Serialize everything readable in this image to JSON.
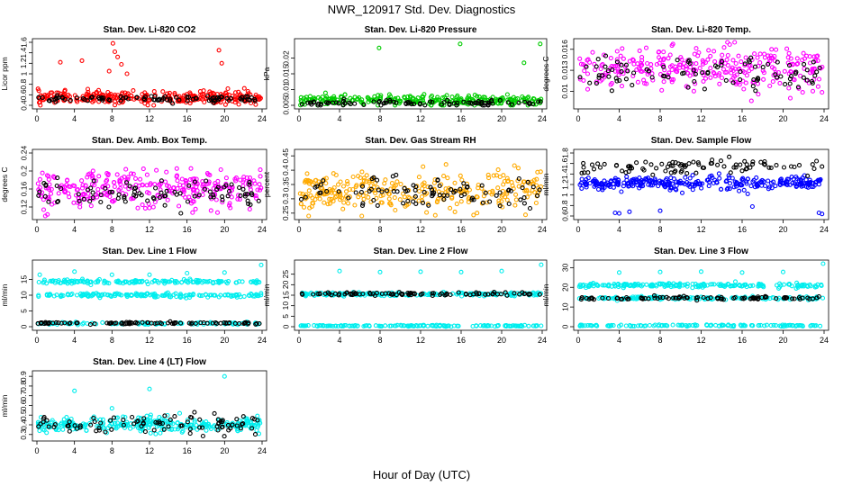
{
  "figure": {
    "title": "NWR_120917  Std. Dev. Diagnostics",
    "xlabel": "Hour of Day (UTC)"
  },
  "chart_data": [
    {
      "type": "scatter",
      "title": "Stan. Dev. Li-820 CO2",
      "ylabel": "Licor ppm",
      "xlim": [
        0,
        24
      ],
      "ylim": [
        0.4,
        1.6
      ],
      "xticks": [
        0,
        4,
        8,
        12,
        16,
        20,
        24
      ],
      "yticks": [
        0.4,
        0.6,
        0.8,
        1.0,
        1.2,
        1.4,
        1.6
      ],
      "series": [
        {
          "name": "main",
          "color": "#ff0000",
          "base": 0.55,
          "spread": 0.06,
          "n": 300
        },
        {
          "name": "ref",
          "color": "#000000",
          "base": 0.52,
          "spread": 0.03,
          "n": 90
        }
      ],
      "outliers": {
        "color": "#ff0000",
        "x": [
          2.5,
          4.8,
          7.7,
          8.1,
          8.3,
          8.6,
          9.0,
          9.6,
          19.4,
          19.7
        ],
        "y": [
          1.22,
          1.25,
          1.05,
          1.58,
          1.42,
          1.32,
          1.18,
          1.0,
          1.45,
          1.2
        ]
      }
    },
    {
      "type": "scatter",
      "title": "Stan. Dev. Li-820 Pressure",
      "ylabel": "kPa",
      "xlim": [
        0,
        24
      ],
      "ylim": [
        0.005,
        0.025
      ],
      "xticks": [
        0,
        4,
        8,
        12,
        16,
        20,
        24
      ],
      "yticks": [
        0.005,
        0.01,
        0.015,
        0.02
      ],
      "series": [
        {
          "name": "main",
          "color": "#00cc00",
          "base": 0.0065,
          "spread": 0.0008,
          "n": 300
        },
        {
          "name": "ref",
          "color": "#000000",
          "base": 0.0057,
          "spread": 0.0004,
          "n": 90
        }
      ],
      "outliers": {
        "color": "#00cc00",
        "x": [
          7.9,
          15.9,
          22.2,
          23.8
        ],
        "y": [
          0.0232,
          0.0245,
          0.0185,
          0.0245
        ]
      }
    },
    {
      "type": "scatter",
      "title": "Stan. Dev. Li-820 Temp.",
      "ylabel": "degrees C",
      "xlim": [
        0,
        24
      ],
      "ylim": [
        0.008,
        0.017
      ],
      "xticks": [
        0,
        4,
        8,
        12,
        16,
        20,
        24
      ],
      "yticks": [
        0.01,
        0.013,
        0.016
      ],
      "series": [
        {
          "name": "main",
          "color": "#ff00ff",
          "base": 0.0132,
          "spread": 0.0016,
          "n": 300
        },
        {
          "name": "ref",
          "color": "#000000",
          "base": 0.0125,
          "spread": 0.0012,
          "n": 90
        }
      ],
      "outliers": {
        "color": "#ff00ff",
        "x": [],
        "y": []
      }
    },
    {
      "type": "scatter",
      "title": "Stan. Dev. Amb. Box Temp.",
      "ylabel": "degrees C",
      "xlim": [
        0,
        24
      ],
      "ylim": [
        0.1,
        0.24
      ],
      "xticks": [
        0,
        4,
        8,
        12,
        16,
        20,
        24
      ],
      "yticks": [
        0.12,
        0.16,
        0.2,
        0.24
      ],
      "series": [
        {
          "name": "main",
          "color": "#ff00ff",
          "base": 0.16,
          "spread": 0.02,
          "n": 300
        },
        {
          "name": "ref",
          "color": "#000000",
          "base": 0.15,
          "spread": 0.015,
          "n": 90
        }
      ],
      "outliers": {
        "color": "#ff00ff",
        "x": [],
        "y": []
      }
    },
    {
      "type": "scatter",
      "title": "Stan. Dev. Gas Stream RH",
      "ylabel": "percent",
      "xlim": [
        0,
        24
      ],
      "ylim": [
        0.24,
        0.46
      ],
      "xticks": [
        0,
        4,
        8,
        12,
        16,
        20,
        24
      ],
      "yticks": [
        0.25,
        0.3,
        0.35,
        0.4,
        0.45
      ],
      "series": [
        {
          "name": "main",
          "color": "#ffaa00",
          "base": 0.325,
          "spread": 0.035,
          "n": 300
        },
        {
          "name": "ref",
          "color": "#000000",
          "base": 0.32,
          "spread": 0.03,
          "n": 90
        }
      ],
      "outliers": {
        "color": "#ffaa00",
        "x": [],
        "y": []
      }
    },
    {
      "type": "scatter",
      "title": "Stan. Dev. Sample Flow",
      "ylabel": "ml/min",
      "xlim": [
        0,
        24
      ],
      "ylim": [
        0.6,
        1.8
      ],
      "xticks": [
        0,
        4,
        8,
        12,
        16,
        20,
        24
      ],
      "yticks": [
        0.6,
        0.8,
        1.0,
        1.2,
        1.4,
        1.6,
        1.8
      ],
      "series": [
        {
          "name": "main",
          "color": "#0000ff",
          "base": 1.22,
          "spread": 0.06,
          "n": 300
        },
        {
          "name": "ref",
          "color": "#000000",
          "base": 1.55,
          "spread": 0.07,
          "n": 90
        }
      ],
      "outliers": {
        "color": "#0000ff",
        "x": [
          3.6,
          4.0,
          5.0,
          8.0,
          17.0,
          23.5,
          23.8
        ],
        "y": [
          0.66,
          0.65,
          0.68,
          0.7,
          0.78,
          0.66,
          0.64
        ]
      }
    },
    {
      "type": "scatter",
      "title": "Stan. Dev. Line 1 Flow",
      "ylabel": "ml/min",
      "xlim": [
        0,
        24
      ],
      "ylim": [
        0,
        20
      ],
      "xticks": [
        0,
        4,
        8,
        12,
        16,
        20,
        24
      ],
      "yticks": [
        0,
        5,
        10,
        15
      ],
      "series": [
        {
          "name": "main",
          "color": "#00eeee",
          "base": 14.3,
          "spread": 0.3,
          "n": 160
        },
        {
          "name": "main2",
          "color": "#00eeee",
          "base": 10.0,
          "spread": 0.3,
          "n": 160
        },
        {
          "name": "low",
          "color": "#00eeee",
          "base": 1.0,
          "spread": 0.2,
          "n": 100
        },
        {
          "name": "ref",
          "color": "#000000",
          "base": 1.1,
          "spread": 0.15,
          "n": 90
        }
      ],
      "outliers": {
        "color": "#00eeee",
        "x": [
          0.3,
          4.0,
          8.0,
          12.0,
          16.0,
          20.0,
          23.9
        ],
        "y": [
          16.5,
          17.5,
          16.5,
          16.5,
          17.0,
          17.2,
          19.6
        ]
      }
    },
    {
      "type": "scatter",
      "title": "Stan. Dev. Line 2 Flow",
      "ylabel": "ml/min",
      "xlim": [
        0,
        24
      ],
      "ylim": [
        0,
        30
      ],
      "xticks": [
        0,
        4,
        8,
        12,
        16,
        20,
        24
      ],
      "yticks": [
        0,
        5,
        10,
        15,
        20,
        25
      ],
      "series": [
        {
          "name": "main",
          "color": "#00eeee",
          "base": 15.5,
          "spread": 0.4,
          "n": 200
        },
        {
          "name": "low",
          "color": "#00eeee",
          "base": 0.4,
          "spread": 0.15,
          "n": 150
        },
        {
          "name": "ref",
          "color": "#000000",
          "base": 15.6,
          "spread": 0.4,
          "n": 90
        }
      ],
      "outliers": {
        "color": "#00eeee",
        "x": [
          4.0,
          8.0,
          12.0,
          16.0,
          20.0,
          23.9
        ],
        "y": [
          26.5,
          26.0,
          26.2,
          26.0,
          26.5,
          29.5
        ]
      }
    },
    {
      "type": "scatter",
      "title": "Stan. Dev. Line 3 Flow",
      "ylabel": "ml/min",
      "xlim": [
        0,
        24
      ],
      "ylim": [
        0,
        32
      ],
      "xticks": [
        0,
        4,
        8,
        12,
        16,
        20,
        24
      ],
      "yticks": [
        0,
        10,
        20,
        30
      ],
      "series": [
        {
          "name": "main",
          "color": "#00eeee",
          "base": 21.0,
          "spread": 0.5,
          "n": 200
        },
        {
          "name": "mid",
          "color": "#00eeee",
          "base": 14.5,
          "spread": 0.4,
          "n": 150
        },
        {
          "name": "low",
          "color": "#00eeee",
          "base": 0.6,
          "spread": 0.2,
          "n": 120
        },
        {
          "name": "ref",
          "color": "#000000",
          "base": 14.5,
          "spread": 0.4,
          "n": 90
        }
      ],
      "outliers": {
        "color": "#00eeee",
        "x": [
          4.0,
          8.0,
          12.0,
          16.0,
          20.0,
          23.9
        ],
        "y": [
          27.5,
          27.8,
          28.0,
          27.5,
          27.8,
          32.0
        ]
      }
    },
    {
      "type": "scatter",
      "title": "Stan. Dev. Line 4 (LT) Flow",
      "ylabel": "ml/min",
      "xlim": [
        0,
        24
      ],
      "ylim": [
        0.27,
        0.92
      ],
      "xticks": [
        0,
        4,
        8,
        12,
        16,
        20,
        24
      ],
      "yticks": [
        0.3,
        0.4,
        0.5,
        0.6,
        0.7,
        0.8,
        0.9
      ],
      "series": [
        {
          "name": "main",
          "color": "#00eeee",
          "base": 0.4,
          "spread": 0.04,
          "n": 300
        },
        {
          "name": "ref",
          "color": "#000000",
          "base": 0.4,
          "spread": 0.05,
          "n": 90
        }
      ],
      "outliers": {
        "color": "#00eeee",
        "x": [
          4.0,
          8.0,
          12.0,
          20.0
        ],
        "y": [
          0.75,
          0.57,
          0.77,
          0.9
        ]
      }
    }
  ]
}
